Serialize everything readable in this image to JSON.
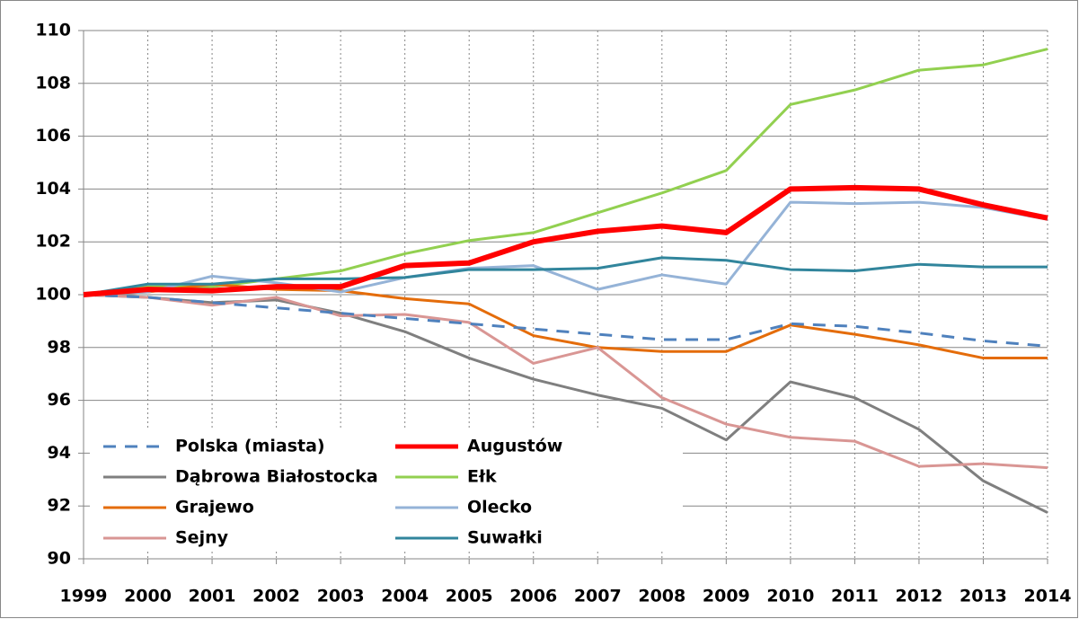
{
  "chart_data": {
    "type": "line",
    "x": [
      1999,
      2000,
      2001,
      2002,
      2003,
      2004,
      2005,
      2006,
      2007,
      2008,
      2009,
      2010,
      2011,
      2012,
      2013,
      2014
    ],
    "xlim": [
      1999,
      2014
    ],
    "xticks": [
      1999,
      2000,
      2001,
      2002,
      2003,
      2004,
      2005,
      2006,
      2007,
      2008,
      2009,
      2010,
      2011,
      2012,
      2013,
      2014
    ],
    "ylim": [
      90,
      110
    ],
    "yticks": [
      90,
      92,
      94,
      96,
      98,
      100,
      102,
      104,
      106,
      108,
      110
    ],
    "grid": true,
    "legend": "lower left",
    "series": [
      {
        "name": "Polska (miasta)",
        "color": "#4f81bd",
        "dashed": true,
        "values": [
          100,
          99.9,
          99.7,
          99.5,
          99.3,
          99.1,
          98.9,
          98.7,
          98.5,
          98.3,
          98.3,
          98.9,
          98.8,
          98.55,
          98.25,
          98.05
        ]
      },
      {
        "name": "Augustów",
        "color": "#ff0000",
        "thick": true,
        "values": [
          100,
          100.2,
          100.15,
          100.3,
          100.3,
          101.1,
          101.2,
          102.0,
          102.4,
          102.6,
          102.35,
          104.0,
          104.05,
          104.0,
          103.4,
          102.9
        ]
      },
      {
        "name": "Dąbrowa Białostocka",
        "color": "#7f7f7f",
        "values": [
          100,
          99.9,
          99.7,
          99.8,
          99.3,
          98.6,
          97.6,
          96.8,
          96.2,
          95.7,
          94.5,
          96.7,
          96.1,
          94.9,
          92.95,
          91.75
        ]
      },
      {
        "name": "Ełk",
        "color": "#92d050",
        "values": [
          100,
          100.3,
          100.3,
          100.6,
          100.9,
          101.55,
          102.05,
          102.35,
          103.1,
          103.85,
          104.7,
          107.2,
          107.75,
          108.5,
          108.7,
          109.3
        ]
      },
      {
        "name": "Grajewo",
        "color": "#e46c0a",
        "values": [
          100,
          100.1,
          100.4,
          100.2,
          100.15,
          99.85,
          99.65,
          98.45,
          98.0,
          97.85,
          97.85,
          98.85,
          98.5,
          98.1,
          97.6,
          97.6
        ]
      },
      {
        "name": "Olecko",
        "color": "#95b3d7",
        "values": [
          100,
          100.1,
          100.7,
          100.45,
          100.1,
          100.65,
          101.0,
          101.1,
          100.2,
          100.75,
          100.4,
          103.5,
          103.45,
          103.5,
          103.3,
          102.85
        ]
      },
      {
        "name": "Sejny",
        "color": "#d99694",
        "values": [
          100,
          99.9,
          99.6,
          99.9,
          99.2,
          99.25,
          98.95,
          97.4,
          98.0,
          96.1,
          95.1,
          94.6,
          94.45,
          93.5,
          93.6,
          93.45
        ]
      },
      {
        "name": "Suwałki",
        "color": "#31859c",
        "values": [
          100,
          100.4,
          100.4,
          100.6,
          100.6,
          100.65,
          100.95,
          100.95,
          101.0,
          101.4,
          101.3,
          100.95,
          100.9,
          101.15,
          101.05,
          101.05
        ]
      }
    ]
  }
}
